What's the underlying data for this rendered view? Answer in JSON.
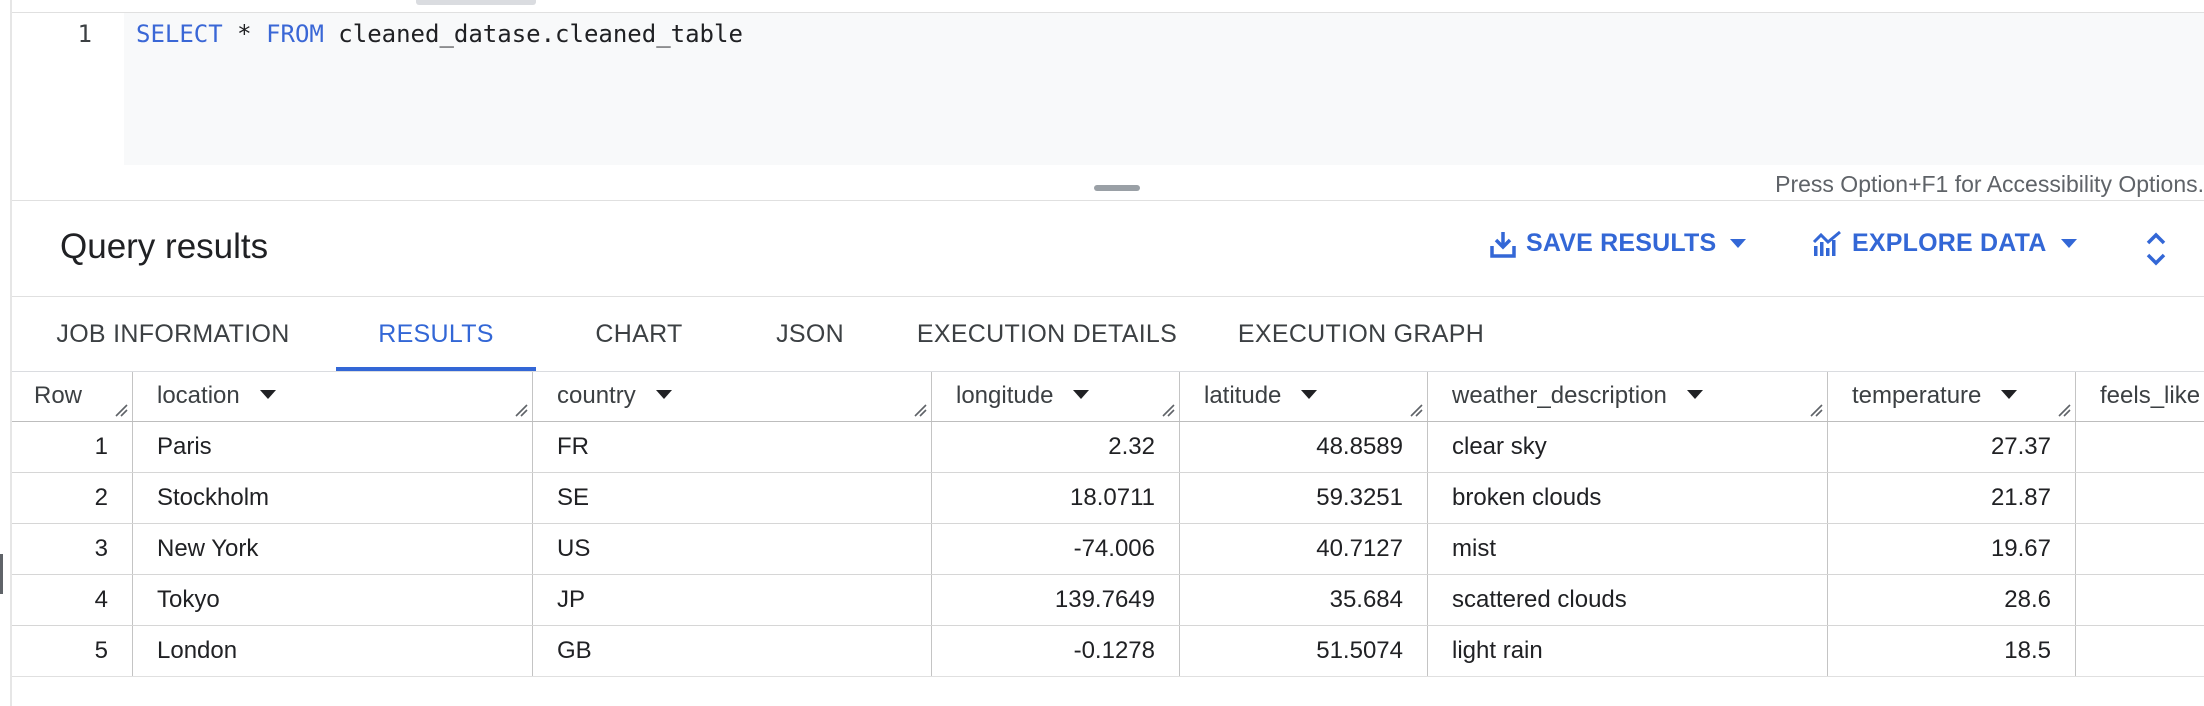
{
  "editor": {
    "line_number": "1",
    "code": {
      "kw_select": "SELECT",
      "star": " * ",
      "kw_from": "FROM",
      "rest": " cleaned_datase.cleaned_table"
    },
    "accessibility_hint": "Press Option+F1 for Accessibility Options."
  },
  "results": {
    "title": "Query results",
    "save_label": "SAVE RESULTS",
    "explore_label": "EXPLORE DATA"
  },
  "tabs": [
    {
      "label": "JOB INFORMATION"
    },
    {
      "label": "RESULTS"
    },
    {
      "label": "CHART"
    },
    {
      "label": "JSON"
    },
    {
      "label": "EXECUTION DETAILS"
    },
    {
      "label": "EXECUTION GRAPH"
    }
  ],
  "active_tab": "RESULTS",
  "table": {
    "columns": [
      "Row",
      "location",
      "country",
      "longitude",
      "latitude",
      "weather_description",
      "temperature",
      "feels_like"
    ],
    "rows": [
      {
        "row": "1",
        "location": "Paris",
        "country": "FR",
        "longitude": "2.32",
        "latitude": "48.8589",
        "weather_description": "clear sky",
        "temperature": "27.37"
      },
      {
        "row": "2",
        "location": "Stockholm",
        "country": "SE",
        "longitude": "18.0711",
        "latitude": "59.3251",
        "weather_description": "broken clouds",
        "temperature": "21.87"
      },
      {
        "row": "3",
        "location": "New York",
        "country": "US",
        "longitude": "-74.006",
        "latitude": "40.7127",
        "weather_description": "mist",
        "temperature": "19.67"
      },
      {
        "row": "4",
        "location": "Tokyo",
        "country": "JP",
        "longitude": "139.7649",
        "latitude": "35.684",
        "weather_description": "scattered clouds",
        "temperature": "28.6"
      },
      {
        "row": "5",
        "location": "London",
        "country": "GB",
        "longitude": "-0.1278",
        "latitude": "51.5074",
        "weather_description": "light rain",
        "temperature": "18.5"
      }
    ]
  },
  "colors": {
    "accent": "#3367d6",
    "keyword": "#3a67d6",
    "text": "#202124",
    "muted": "#5f6368"
  },
  "icons": [
    "download-icon",
    "chevron-down-icon",
    "chart-line-icon",
    "expand-icon",
    "sort-caret-icon",
    "resize-handle-icon"
  ]
}
